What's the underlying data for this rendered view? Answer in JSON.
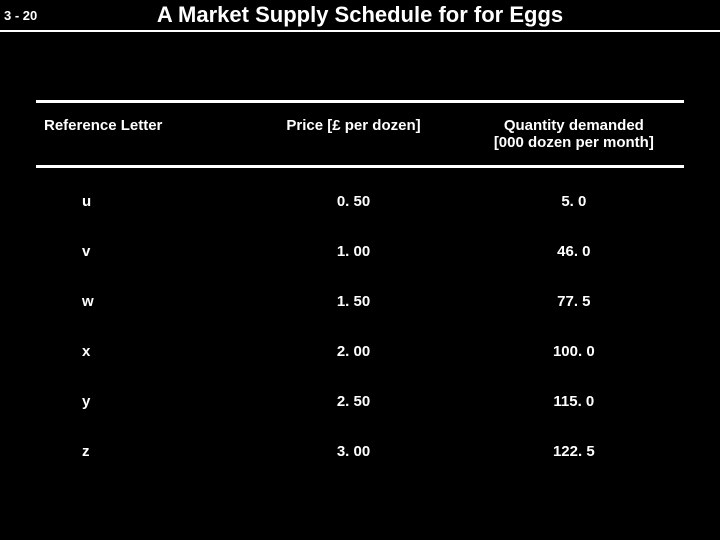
{
  "header": {
    "page_number": "3 - 20",
    "title": "A Market Supply Schedule for  for Eggs"
  },
  "table": {
    "columns": {
      "ref": "Reference Letter",
      "price": "Price [£ per dozen]",
      "qty_l1": "Quantity demanded",
      "qty_l2": "[000 dozen per month]"
    },
    "rows": [
      {
        "ref": "u",
        "price": "0. 50",
        "qty": "5. 0"
      },
      {
        "ref": "v",
        "price": "1. 00",
        "qty": "46. 0"
      },
      {
        "ref": "w",
        "price": "1. 50",
        "qty": "77. 5"
      },
      {
        "ref": "x",
        "price": "2. 00",
        "qty": "100. 0"
      },
      {
        "ref": "y",
        "price": "2. 50",
        "qty": "115. 0"
      },
      {
        "ref": "z",
        "price": "3. 00",
        "qty": "122. 5"
      }
    ]
  },
  "colors": {
    "background": "#000000",
    "text": "#ffffff",
    "rule": "#ffffff"
  }
}
